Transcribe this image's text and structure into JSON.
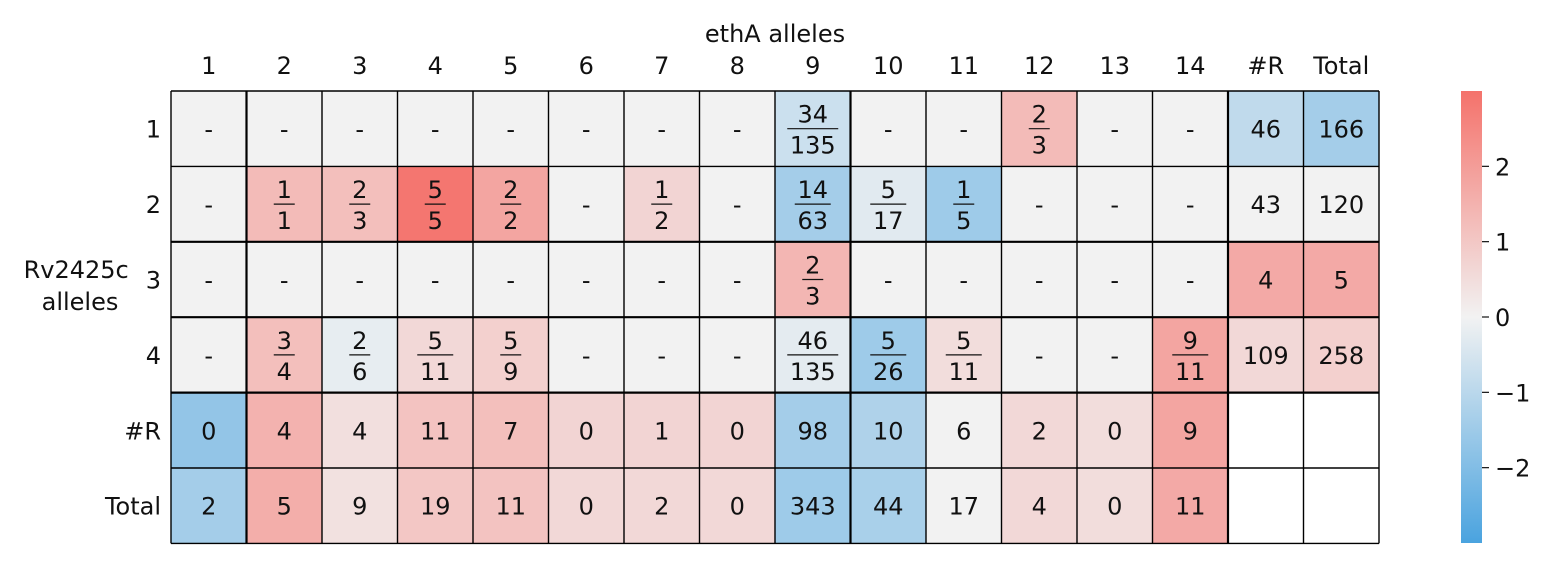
{
  "chart_data": {
    "type": "heatmap",
    "title": "ethA alleles",
    "ylabel": "Rv2425c\nalleles",
    "columns": [
      "1",
      "2",
      "3",
      "4",
      "5",
      "6",
      "7",
      "8",
      "9",
      "10",
      "11",
      "12",
      "13",
      "14",
      "#R",
      "Total"
    ],
    "rows": [
      "1",
      "2",
      "3",
      "4",
      "#R",
      "Total"
    ],
    "cells": [
      [
        "-",
        "-",
        "-",
        "-",
        "-",
        "-",
        "-",
        "-",
        "34/135",
        "-",
        "-",
        "2/3",
        "-",
        "-",
        "46",
        "166"
      ],
      [
        "-",
        "1/1",
        "2/3",
        "5/5",
        "2/2",
        "-",
        "1/2",
        "-",
        "14/63",
        "5/17",
        "1/5",
        "-",
        "-",
        "-",
        "43",
        "120"
      ],
      [
        "-",
        "-",
        "-",
        "-",
        "-",
        "-",
        "-",
        "-",
        "2/3",
        "-",
        "-",
        "-",
        "-",
        "-",
        "4",
        "5"
      ],
      [
        "-",
        "3/4",
        "2/6",
        "5/11",
        "5/9",
        "-",
        "-",
        "-",
        "46/135",
        "5/26",
        "5/11",
        "-",
        "-",
        "9/11",
        "109",
        "258"
      ],
      [
        "0",
        "4",
        "4",
        "11",
        "7",
        "0",
        "1",
        "0",
        "98",
        "10",
        "6",
        "2",
        "0",
        "9",
        "",
        ""
      ],
      [
        "2",
        "5",
        "9",
        "19",
        "11",
        "0",
        "2",
        "0",
        "343",
        "44",
        "17",
        "4",
        "0",
        "11",
        "",
        ""
      ]
    ],
    "values": [
      [
        0,
        0,
        0,
        0,
        0,
        0,
        0,
        0,
        -0.7,
        0,
        0,
        1.3,
        0,
        0,
        -0.9,
        -1.4
      ],
      [
        0,
        1.3,
        1.2,
        2.9,
        1.8,
        0,
        0.7,
        0,
        -1.4,
        -0.3,
        -1.5,
        0,
        0,
        0,
        0,
        0
      ],
      [
        0,
        0,
        0,
        0,
        0,
        0,
        0,
        0,
        1.4,
        0,
        0,
        0,
        0,
        0,
        1.7,
        1.7
      ],
      [
        0,
        1.2,
        -0.2,
        0.6,
        0.8,
        0,
        0,
        0,
        -0.25,
        -1.5,
        0.5,
        0,
        0,
        1.8,
        0.6,
        0.8
      ],
      [
        -1.7,
        1.5,
        0.45,
        1.1,
        1.2,
        0.7,
        0.7,
        0.7,
        -1.4,
        -1.2,
        0,
        0.6,
        0.5,
        1.8,
        null,
        null
      ],
      [
        -1.4,
        1.6,
        0.4,
        1.0,
        1.1,
        0.6,
        0.6,
        0.6,
        -1.5,
        -1.3,
        0,
        0.6,
        0.5,
        1.7,
        null,
        null
      ]
    ],
    "colorbar": {
      "vmin": -3,
      "vmax": 3,
      "ticks": [
        -2,
        -1,
        0,
        1,
        2
      ]
    },
    "colors": {
      "negative": "#4aa3df",
      "neutral": "#f2f2f2",
      "positive": "#f4726b"
    }
  }
}
